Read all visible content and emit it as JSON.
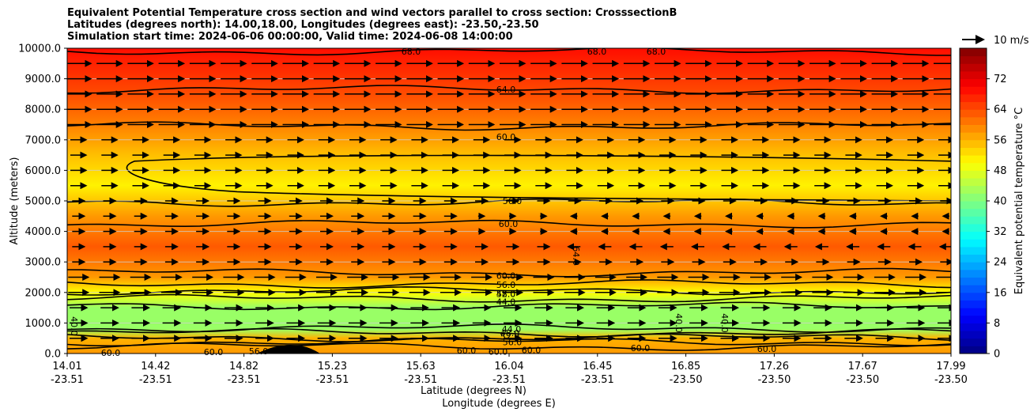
{
  "chart_data": {
    "type": "contourf",
    "title_lines": [
      "Equivalent Potential Temperature cross section and wind vectors parallel to cross section: CrosssectionB",
      "Latitudes (degrees north): 14.00,18.00, Longitudes (degrees east): -23.50,-23.50",
      "Simulation start time: 2024-06-06 00:00:00, Valid time: 2024-06-08 14:00:00"
    ],
    "ylabel": "Altitude (meters)",
    "xlabel_lat": "Latitude (degrees N)",
    "xlabel_lon": "Longitude (degrees E)",
    "ylim": [
      0,
      10000
    ],
    "yticks": [
      "0.0",
      "1000.0",
      "2000.0",
      "3000.0",
      "4000.0",
      "5000.0",
      "6000.0",
      "7000.0",
      "8000.0",
      "9000.0",
      "10000.0"
    ],
    "xticks_lat": [
      "14.01",
      "14.42",
      "14.82",
      "15.23",
      "15.63",
      "16.04",
      "16.45",
      "16.85",
      "17.26",
      "17.67",
      "17.99"
    ],
    "xticks_lon": [
      "-23.51",
      "-23.51",
      "-23.51",
      "-23.51",
      "-23.51",
      "-23.51",
      "-23.51",
      "-23.50",
      "-23.50",
      "-23.50",
      "-23.50"
    ],
    "lat_range": [
      14.01,
      17.99
    ],
    "quiver_key_label": "10 m/s",
    "colorbar": {
      "label": "Equivalent potential temperature °C",
      "range": [
        0,
        80
      ],
      "ticks": [
        "0",
        "8",
        "16",
        "24",
        "32",
        "40",
        "48",
        "56",
        "64",
        "72"
      ]
    },
    "contour_labels": [
      "68.0",
      "68.0",
      "68.0",
      "64.0",
      "60.0",
      "56.0",
      "60.0",
      "64.0",
      "60.0",
      "56.0",
      "52.0",
      "48.0",
      "44.0",
      "40.0",
      "40.0",
      "40.0",
      "44.0",
      "48.0",
      "52.0",
      "56.0",
      "60.0",
      "60.0",
      "60.0",
      "60.0",
      "60.0",
      "60.0",
      "56.0",
      "60.0"
    ],
    "theta_e_profile": [
      {
        "altitude_m": 0,
        "value": 58
      },
      {
        "altitude_m": 500,
        "value": 56
      },
      {
        "altitude_m": 800,
        "value": 42
      },
      {
        "altitude_m": 1500,
        "value": 42
      },
      {
        "altitude_m": 2000,
        "value": 50
      },
      {
        "altitude_m": 2500,
        "value": 58
      },
      {
        "altitude_m": 3500,
        "value": 63
      },
      {
        "altitude_m": 4500,
        "value": 58
      },
      {
        "altitude_m": 5500,
        "value": 51
      },
      {
        "altitude_m": 6500,
        "value": 55
      },
      {
        "altitude_m": 7500,
        "value": 60
      },
      {
        "altitude_m": 8500,
        "value": 64
      },
      {
        "altitude_m": 10000,
        "value": 69
      }
    ]
  }
}
